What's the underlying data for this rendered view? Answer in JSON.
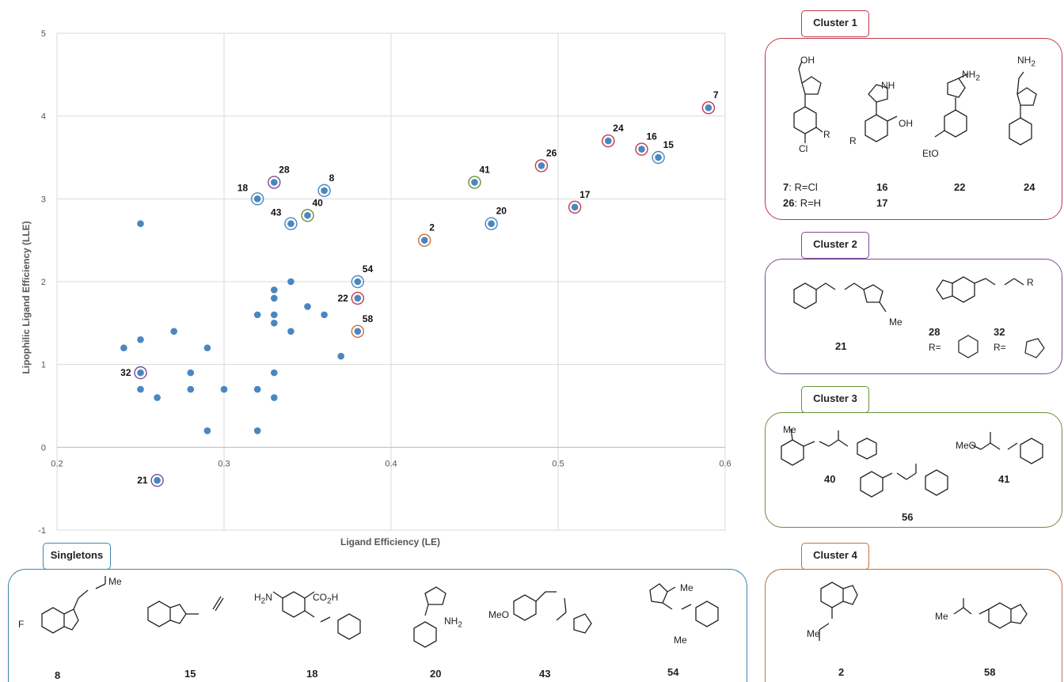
{
  "chart_data": {
    "type": "scatter",
    "xlabel": "Ligand Efficiency  (LE)",
    "ylabel": "Lipophilic Ligand Efficiency (LLE)",
    "xlim": [
      0.2,
      0.6
    ],
    "ylim": [
      -1,
      5
    ],
    "xticks": [
      "0.2",
      "0.3",
      "0.4",
      "0.5",
      "0.6"
    ],
    "yticks": [
      "-1",
      "0",
      "1",
      "2",
      "3",
      "4",
      "5"
    ],
    "grid": true,
    "point_color": "#4a86c0",
    "points": [
      {
        "x": 0.25,
        "y": 2.7
      },
      {
        "x": 0.25,
        "y": 1.3
      },
      {
        "x": 0.24,
        "y": 1.2
      },
      {
        "x": 0.25,
        "y": 0.7
      },
      {
        "x": 0.26,
        "y": 0.6
      },
      {
        "x": 0.27,
        "y": 1.4
      },
      {
        "x": 0.28,
        "y": 0.9
      },
      {
        "x": 0.28,
        "y": 0.7
      },
      {
        "x": 0.29,
        "y": 1.2
      },
      {
        "x": 0.29,
        "y": 0.2
      },
      {
        "x": 0.3,
        "y": 0.7
      },
      {
        "x": 0.32,
        "y": 1.6
      },
      {
        "x": 0.32,
        "y": 0.7
      },
      {
        "x": 0.32,
        "y": 0.2
      },
      {
        "x": 0.33,
        "y": 1.9
      },
      {
        "x": 0.33,
        "y": 1.8
      },
      {
        "x": 0.33,
        "y": 1.6
      },
      {
        "x": 0.33,
        "y": 1.5
      },
      {
        "x": 0.33,
        "y": 0.9
      },
      {
        "x": 0.33,
        "y": 0.6
      },
      {
        "x": 0.34,
        "y": 2.0
      },
      {
        "x": 0.34,
        "y": 1.4
      },
      {
        "x": 0.35,
        "y": 1.7
      },
      {
        "x": 0.36,
        "y": 1.6
      },
      {
        "x": 0.37,
        "y": 1.1
      }
    ],
    "labeled_points": [
      {
        "label": "7",
        "x": 0.59,
        "y": 4.1,
        "ring": "#c0394b",
        "pos": "tr"
      },
      {
        "label": "24",
        "x": 0.53,
        "y": 3.7,
        "ring": "#c0394b",
        "pos": "tr"
      },
      {
        "label": "16",
        "x": 0.55,
        "y": 3.6,
        "ring": "#c0394b",
        "pos": "tr"
      },
      {
        "label": "15",
        "x": 0.56,
        "y": 3.5,
        "ring": "#4a86c0",
        "pos": "tr"
      },
      {
        "label": "26",
        "x": 0.49,
        "y": 3.4,
        "ring": "#c0394b",
        "pos": "tr"
      },
      {
        "label": "17",
        "x": 0.51,
        "y": 2.9,
        "ring": "#c0394b",
        "pos": "tr"
      },
      {
        "label": "41",
        "x": 0.45,
        "y": 3.2,
        "ring": "#6a8f3a",
        "pos": "tr"
      },
      {
        "label": "20",
        "x": 0.46,
        "y": 2.7,
        "ring": "#4a86c0",
        "pos": "tr"
      },
      {
        "label": "2",
        "x": 0.42,
        "y": 2.5,
        "ring": "#c4703a",
        "pos": "tr"
      },
      {
        "label": "28",
        "x": 0.33,
        "y": 3.2,
        "ring": "#7b4b94",
        "pos": "tr"
      },
      {
        "label": "8",
        "x": 0.36,
        "y": 3.1,
        "ring": "#4a86c0",
        "pos": "tr"
      },
      {
        "label": "18",
        "x": 0.32,
        "y": 3.0,
        "ring": "#4a86c0",
        "pos": "tl"
      },
      {
        "label": "40",
        "x": 0.35,
        "y": 2.8,
        "ring": "#6a8f3a",
        "pos": "tr"
      },
      {
        "label": "43",
        "x": 0.34,
        "y": 2.7,
        "ring": "#4a86c0",
        "pos": "tl"
      },
      {
        "label": "54",
        "x": 0.38,
        "y": 2.0,
        "ring": "#4a86c0",
        "pos": "tr"
      },
      {
        "label": "22",
        "x": 0.38,
        "y": 1.8,
        "ring": "#c0394b",
        "pos": "l"
      },
      {
        "label": "58",
        "x": 0.38,
        "y": 1.4,
        "ring": "#c4703a",
        "pos": "tr"
      },
      {
        "label": "32",
        "x": 0.25,
        "y": 0.9,
        "ring": "#7b4b94",
        "pos": "l"
      },
      {
        "label": "21",
        "x": 0.26,
        "y": -0.4,
        "ring": "#7b4b94",
        "pos": "l"
      }
    ]
  },
  "colors": {
    "cluster1": "#c0394b",
    "cluster2": "#7b4b94",
    "cluster3": "#6a8f3a",
    "cluster4": "#c4703a",
    "singletons": "#3f86a8"
  },
  "cluster1": {
    "title": "Cluster 1",
    "captions": {
      "c7": "7",
      "c7_rest": ": R=Cl",
      "c26": "26",
      "c26_rest": ": R=H",
      "c16": "16",
      "c17": "17",
      "c22": "22",
      "c24": "24"
    },
    "text": {
      "oh": "OH",
      "nh": "NH",
      "nh2": "NH",
      "r": "R",
      "cl": "Cl",
      "eto": "EtO",
      "oh2": "OH"
    }
  },
  "cluster2": {
    "title": "Cluster 2",
    "captions": {
      "c21": "21",
      "c28": "28",
      "c32": "32",
      "r1": "R=",
      "r2": "R="
    },
    "text": {
      "me": "Me",
      "r": "R"
    }
  },
  "cluster3": {
    "title": "Cluster 3",
    "captions": {
      "c40": "40",
      "c41": "41",
      "c56": "56"
    },
    "text": {
      "me": "Me",
      "meo": "MeO"
    }
  },
  "cluster4": {
    "title": "Cluster 4",
    "captions": {
      "c2": "2",
      "c58": "58"
    },
    "text": {
      "me1": "Me",
      "me2": "Me"
    }
  },
  "singletons": {
    "title": "Singletons",
    "captions": {
      "c8": "8",
      "c15": "15",
      "c18": "18",
      "c20": "20",
      "c43": "43",
      "c54": "54"
    },
    "text": {
      "f": "F",
      "me8": "Me",
      "h2n": "H",
      "co2h": "CO",
      "meo": "MeO",
      "me54": "Me",
      "me54b": "Me"
    }
  }
}
